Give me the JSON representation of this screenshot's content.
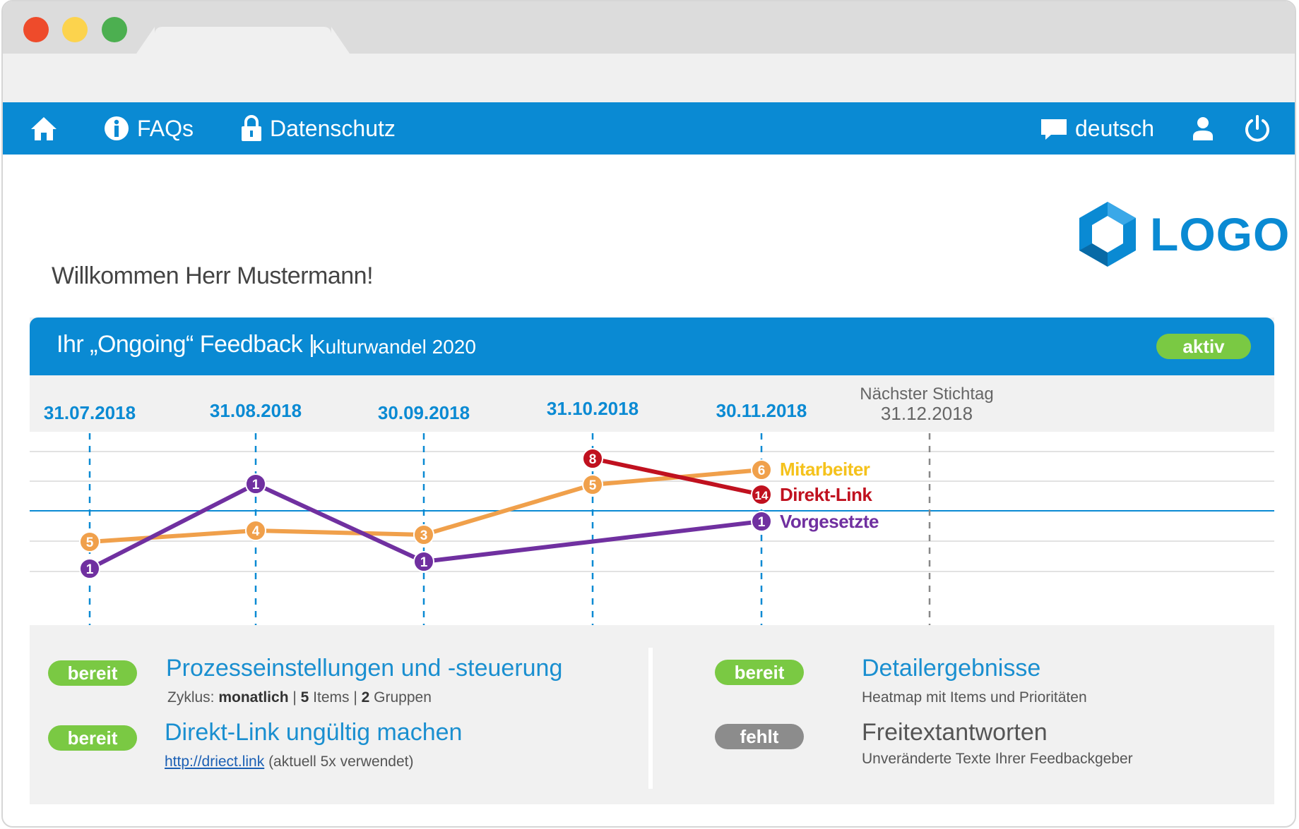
{
  "navbar": {
    "faq_label": "FAQs",
    "privacy_label": "Datenschutz",
    "language_label": "deutsch"
  },
  "logo": {
    "text": "LOGO"
  },
  "welcome": "Willkommen Herr Mustermann!",
  "feedback_card": {
    "title": "Ihr „Ongoing“ Feedback |",
    "subtitle": "Kulturwandel  2020",
    "status": "aktiv"
  },
  "chart_data": {
    "type": "line",
    "x": [
      "31.07.2018",
      "31.08.2018",
      "30.09.2018",
      "31.10.2018",
      "30.11.2018"
    ],
    "next_deadline_label": "Nächster Stichtag",
    "next_deadline_date": "31.12.2018",
    "series": [
      {
        "name": "Mitarbeiter",
        "color": "#f0a04b",
        "label_color": "#f5c21b",
        "values": [
          5,
          4,
          3,
          5,
          6
        ]
      },
      {
        "name": "Direkt-Link",
        "color": "#c0111f",
        "label_color": "#c0111f",
        "values": [
          null,
          null,
          null,
          8,
          14
        ]
      },
      {
        "name": "Vorgesetzte",
        "color": "#7030a0",
        "label_color": "#7030a0",
        "values": [
          1,
          1,
          1,
          null,
          1
        ]
      }
    ],
    "grid": true
  },
  "tasks": {
    "left": [
      {
        "status": "bereit",
        "title": "Prozesseinstellungen und -steuerung",
        "sub_prefix": "Zyklus: ",
        "sub_cycle": "monatlich",
        "sub_sep1": " | ",
        "sub_items_count": "5",
        "sub_items_label": " Items | ",
        "sub_groups_count": "2",
        "sub_groups_label": " Gruppen"
      },
      {
        "status": "bereit",
        "title": "Direkt-Link ungültig machen",
        "link": "http://driect.link",
        "link_note": " (aktuell 5x verwendet)"
      }
    ],
    "right": [
      {
        "status": "bereit",
        "title": "Detailergebnisse",
        "sub": "Heatmap mit Items und Prioritäten"
      },
      {
        "status": "fehlt",
        "title": "Freitextantworten",
        "sub": "Unveränderte Texte Ihrer Feedbackgeber"
      }
    ]
  }
}
